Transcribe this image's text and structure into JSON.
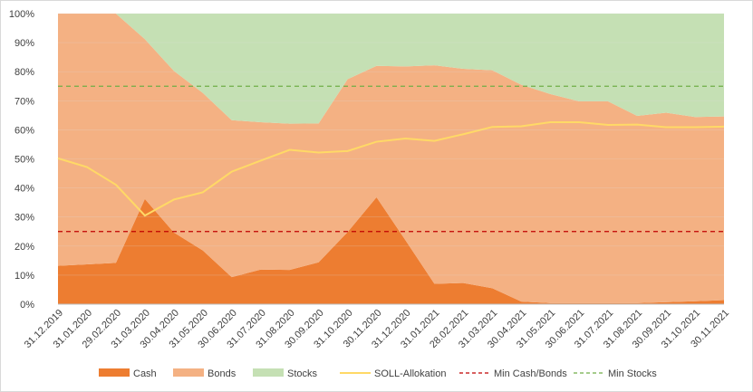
{
  "chart_data": {
    "type": "area",
    "stacked": true,
    "categories": [
      "31.12.2019",
      "31.01.2020",
      "29.02.2020",
      "31.03.2020",
      "30.04.2020",
      "31.05.2020",
      "30.06.2020",
      "31.07.2020",
      "31.08.2020",
      "30.09.2020",
      "31.10.2020",
      "30.11.2020",
      "31.12.2020",
      "31.01.2021",
      "28.02.2021",
      "31.03.2021",
      "30.04.2021",
      "31.05.2021",
      "30.06.2021",
      "31.07.2021",
      "31.08.2021",
      "30.09.2021",
      "31.10.2021",
      "30.11.2021"
    ],
    "series": [
      {
        "name": "Cash",
        "kind": "area",
        "color": "#ed7d31",
        "values": [
          13.2,
          13.7,
          14.2,
          36.2,
          24.7,
          18.5,
          9.3,
          11.9,
          11.8,
          14.4,
          24.8,
          36.8,
          22.0,
          7.0,
          7.3,
          5.5,
          0.9,
          0.4,
          0.4,
          0.4,
          0.4,
          0.7,
          1.0,
          1.4
        ]
      },
      {
        "name": "Bonds",
        "kind": "area",
        "color": "#f4b183",
        "values": [
          86.8,
          86.3,
          85.8,
          55.0,
          55.6,
          54.2,
          54.0,
          50.7,
          50.3,
          47.8,
          52.6,
          45.2,
          59.8,
          75.2,
          73.7,
          75.0,
          74.6,
          71.9,
          69.4,
          69.4,
          64.4,
          65.2,
          63.4,
          63.2
        ]
      },
      {
        "name": "Stocks",
        "kind": "area",
        "color": "#c5e0b4",
        "values": [
          0.0,
          0.0,
          0.0,
          8.8,
          19.7,
          27.3,
          36.7,
          37.4,
          37.9,
          37.8,
          22.6,
          18.0,
          18.2,
          17.8,
          19.0,
          19.5,
          24.5,
          27.7,
          30.2,
          30.2,
          35.2,
          34.1,
          35.6,
          35.4
        ]
      },
      {
        "name": "SOLL-Allokation",
        "kind": "line",
        "color": "#ffd966",
        "values": [
          50.2,
          47.2,
          41.1,
          30.5,
          36.0,
          38.5,
          45.6,
          49.4,
          53.1,
          52.2,
          52.7,
          55.9,
          57.0,
          56.2,
          58.5,
          61.0,
          61.2,
          62.6,
          62.6,
          61.7,
          61.8,
          60.9,
          60.9,
          61.1
        ]
      },
      {
        "name": "Min Cash/Bonds",
        "kind": "dashed",
        "color": "#c00000",
        "values": [
          25,
          25,
          25,
          25,
          25,
          25,
          25,
          25,
          25,
          25,
          25,
          25,
          25,
          25,
          25,
          25,
          25,
          25,
          25,
          25,
          25,
          25,
          25,
          25
        ]
      },
      {
        "name": "Min Stocks",
        "kind": "dashed",
        "color": "#70ad47",
        "values": [
          75,
          75,
          75,
          75,
          75,
          75,
          75,
          75,
          75,
          75,
          75,
          75,
          75,
          75,
          75,
          75,
          75,
          75,
          75,
          75,
          75,
          75,
          75,
          75
        ]
      }
    ],
    "ylim": [
      0,
      100
    ],
    "yticks": [
      "0%",
      "10%",
      "20%",
      "30%",
      "40%",
      "50%",
      "60%",
      "70%",
      "80%",
      "90%",
      "100%"
    ],
    "legend_position": "bottom",
    "title": "",
    "xlabel": "",
    "ylabel": ""
  }
}
